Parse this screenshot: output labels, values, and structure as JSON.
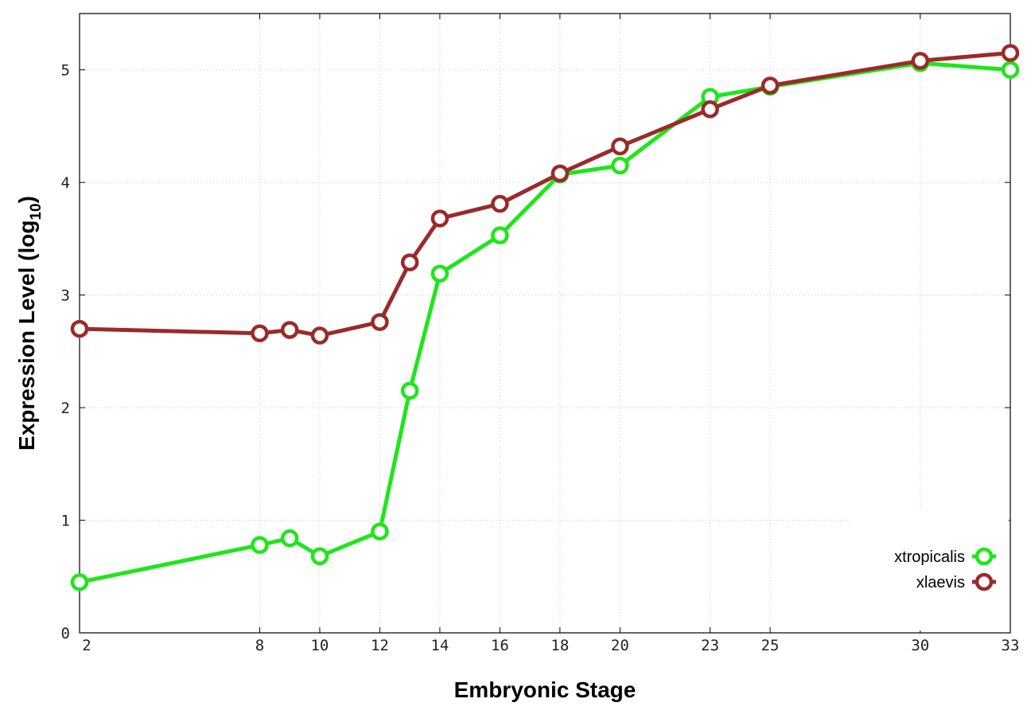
{
  "chart_data": {
    "type": "line",
    "xlabel": "Embryonic Stage",
    "ylabel": "Expression Level (log",
    "ylabel_subscript": "10",
    "ylabel_suffix": ")",
    "xlim": [
      2,
      33
    ],
    "ylim": [
      0,
      5.5
    ],
    "x_ticks": [
      2,
      8,
      10,
      12,
      14,
      16,
      18,
      20,
      23,
      25,
      30,
      33
    ],
    "y_ticks": [
      0,
      1,
      2,
      3,
      4,
      5
    ],
    "grid": true,
    "legend_position": "bottom-right",
    "series": [
      {
        "name": "xtropicalis",
        "color": "#1ee61a",
        "x": [
          2,
          8,
          9,
          10,
          12,
          13,
          14,
          16,
          18,
          20,
          23,
          25,
          30,
          33
        ],
        "y": [
          0.45,
          0.78,
          0.84,
          0.68,
          0.9,
          2.15,
          3.19,
          3.53,
          4.07,
          4.15,
          4.76,
          4.85,
          5.06,
          5.0
        ]
      },
      {
        "name": "xlaevis",
        "color": "#9b2a2a",
        "x": [
          2,
          8,
          9,
          10,
          12,
          13,
          14,
          16,
          18,
          20,
          23,
          25,
          30,
          33
        ],
        "y": [
          2.7,
          2.66,
          2.69,
          2.64,
          2.76,
          3.29,
          3.68,
          3.81,
          4.08,
          4.32,
          4.65,
          4.86,
          5.08,
          5.15
        ]
      }
    ]
  }
}
